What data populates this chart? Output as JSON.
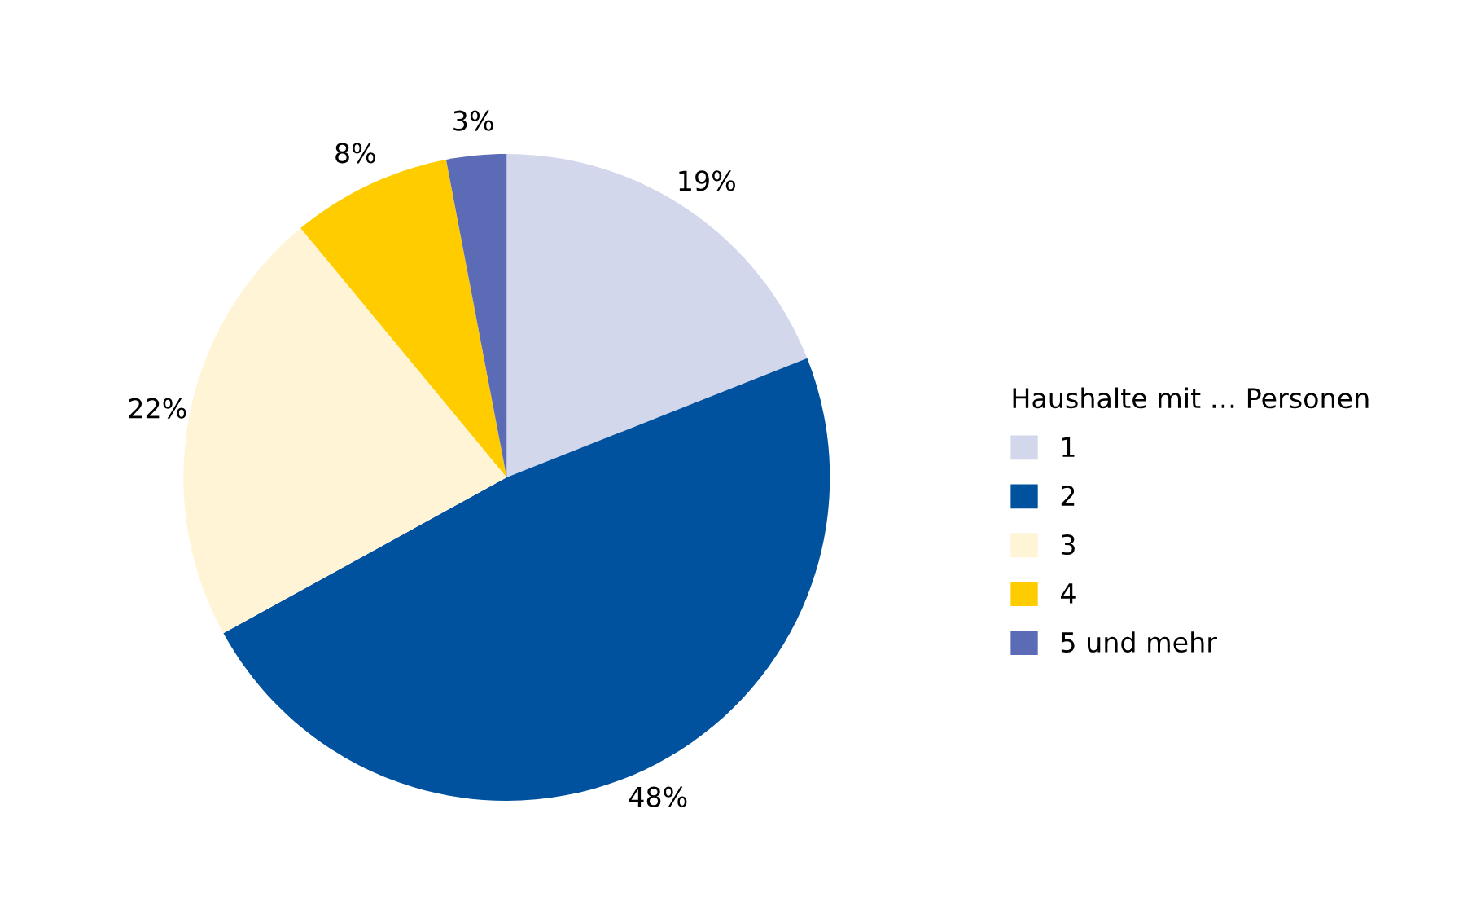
{
  "chart_data": {
    "type": "pie",
    "legend_title": "Haushalte mit … Personen",
    "categories": [
      "1",
      "2",
      "3",
      "4",
      "5 und mehr"
    ],
    "values": [
      19,
      48,
      22,
      8,
      3
    ],
    "value_labels": [
      "19%",
      "48%",
      "22%",
      "8%",
      "3%"
    ],
    "colors": [
      "#d3d7ec",
      "#00529f",
      "#fff4d6",
      "#ffcc00",
      "#5b6bb5"
    ],
    "legend": "right"
  }
}
